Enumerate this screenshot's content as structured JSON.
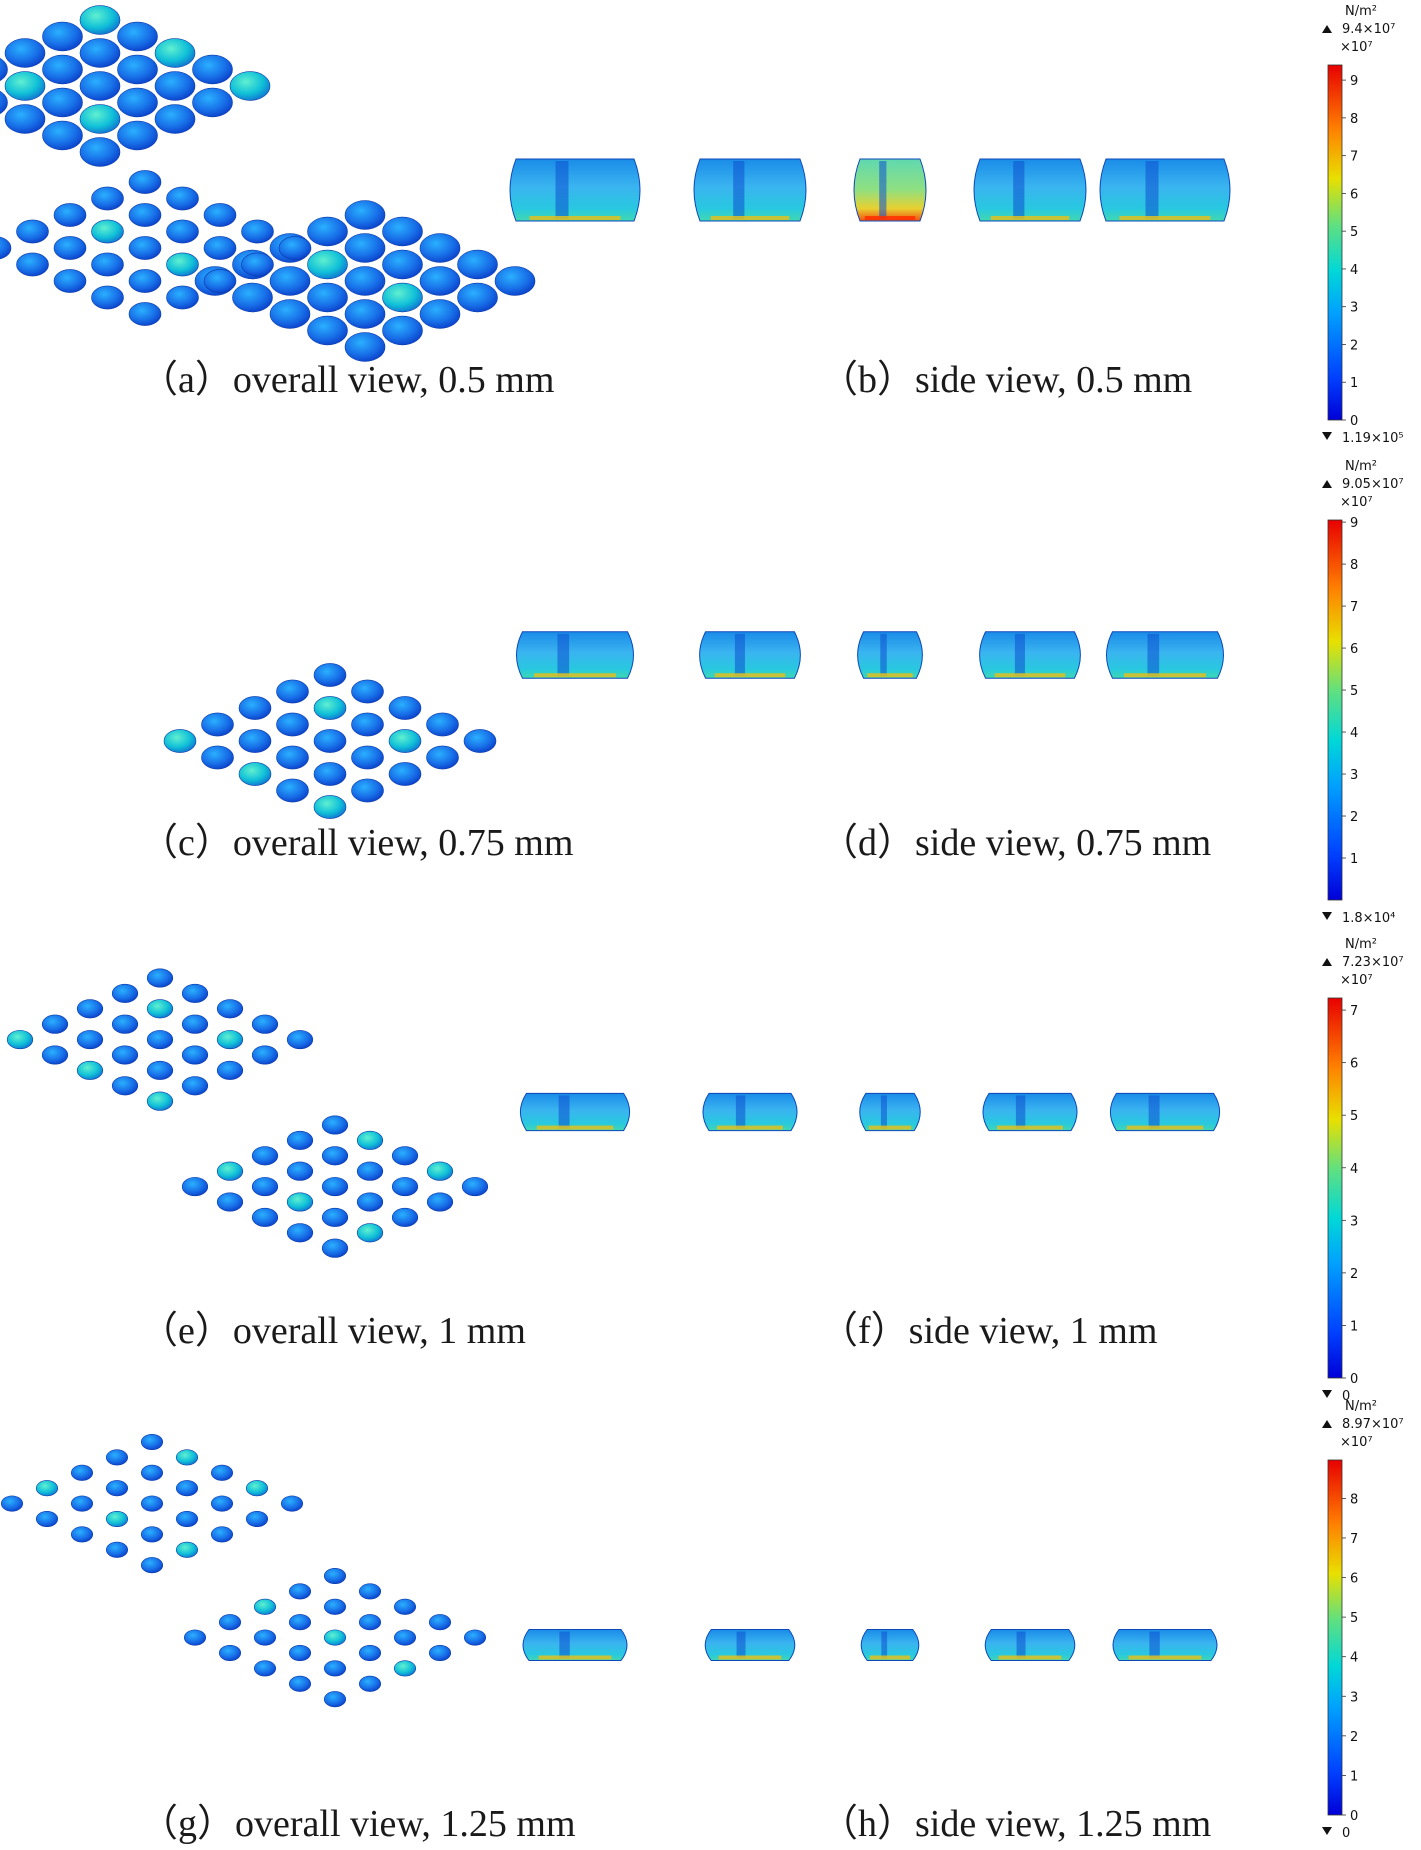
{
  "panels": [
    {
      "caption_left": "（a）overall view, 0.5 mm",
      "caption_right": "（b）side view, 0.5 mm",
      "colorbar": {
        "unit": "N/m²",
        "max": "9.4×10⁷",
        "scale": "×10⁷",
        "min": "1.19×10⁵",
        "ticks": [
          "9",
          "8",
          "7",
          "6",
          "5",
          "4",
          "3",
          "2",
          "1",
          "0"
        ],
        "top_value": 9.4
      },
      "grid": {
        "size": 5,
        "dot_scale": 1.0
      },
      "side_scale": 1.0
    },
    {
      "caption_left": "（c）overall view, 0.75 mm",
      "caption_right": "（d）side view, 0.75 mm",
      "colorbar": {
        "unit": "N/m²",
        "max": "9.05×10⁷",
        "scale": "×10⁷",
        "min": "1.8×10⁴",
        "ticks": [
          "9",
          "8",
          "7",
          "6",
          "5",
          "4",
          "3",
          "2",
          "1"
        ],
        "top_value": 9.05
      },
      "grid": {
        "size": 5,
        "dot_scale": 0.75
      },
      "side_scale": 0.75
    },
    {
      "caption_left": "（e）overall view, 1 mm",
      "caption_right": "（f）side view, 1 mm",
      "colorbar": {
        "unit": "N/m²",
        "max": "7.23×10⁷",
        "scale": "×10⁷",
        "min": "0",
        "ticks": [
          "7",
          "6",
          "5",
          "4",
          "3",
          "2",
          "1",
          "0"
        ],
        "top_value": 7.23
      },
      "grid": {
        "size": 5,
        "dot_scale": 0.55
      },
      "side_scale": 0.6
    },
    {
      "caption_left": "（g）overall view, 1.25 mm",
      "caption_right": "（h）side view, 1.25 mm",
      "colorbar": {
        "unit": "N/m²",
        "max": "8.97×10⁷",
        "scale": "×10⁷",
        "min": "0",
        "ticks": [
          "8",
          "7",
          "6",
          "5",
          "4",
          "3",
          "2",
          "1",
          "0"
        ],
        "top_value": 8.97
      },
      "grid": {
        "size": 5,
        "dot_scale": 0.42
      },
      "side_scale": 0.5
    }
  ],
  "colors": {
    "low": "#0000ff",
    "mid": "#00c8c8",
    "high": "#ff0000"
  }
}
